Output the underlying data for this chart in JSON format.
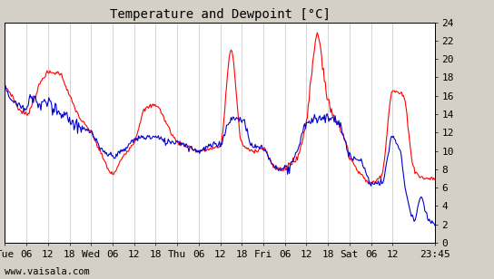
{
  "title": "Temperature and Dewpoint [°C]",
  "ylabel_right_ticks": [
    0,
    2,
    4,
    6,
    8,
    10,
    12,
    14,
    16,
    18,
    20,
    22,
    24
  ],
  "ylim": [
    0,
    24
  ],
  "xlabel_ticks_labels": [
    "Tue",
    "06",
    "12",
    "18",
    "Wed",
    "06",
    "12",
    "18",
    "Thu",
    "06",
    "12",
    "18",
    "Fri",
    "06",
    "12",
    "18",
    "Sat",
    "06",
    "12",
    "23:45"
  ],
  "xlabel_ticks_positions": [
    0,
    6,
    12,
    18,
    24,
    30,
    36,
    42,
    48,
    54,
    60,
    66,
    72,
    78,
    84,
    90,
    96,
    102,
    108,
    119.75
  ],
  "xlim": [
    0,
    119.75
  ],
  "temp_color": "#ff0000",
  "dew_color": "#0000cc",
  "background_color": "#d4d0c8",
  "plot_bg_color": "#ffffff",
  "grid_color": "#c0c0c0",
  "watermark": "www.vaisala.com",
  "title_fontsize": 10,
  "tick_fontsize": 8,
  "watermark_fontsize": 7.5,
  "line_width": 0.8
}
